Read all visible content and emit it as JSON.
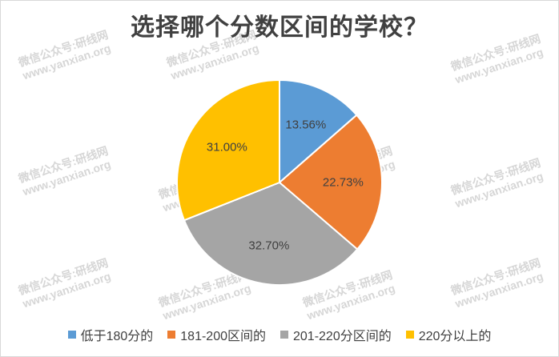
{
  "chart_data": {
    "type": "pie",
    "title": "选择哪个分数区间的学校？",
    "slices": [
      {
        "label": "低于180分的",
        "value": 13.56,
        "display": "13.56%",
        "color": "#5b9bd5"
      },
      {
        "label": "181-200区间的",
        "value": 22.73,
        "display": "22.73%",
        "color": "#ed7d31"
      },
      {
        "label": "201-220分区间的",
        "value": 32.7,
        "display": "32.70%",
        "color": "#a5a5a5"
      },
      {
        "label": "220分以上的",
        "value": 31.0,
        "display": "31.00%",
        "color": "#ffc000"
      }
    ],
    "legend_position": "bottom"
  },
  "watermark": {
    "line1": "微信公众号:研线网",
    "line2": "www.yanxian.org"
  }
}
